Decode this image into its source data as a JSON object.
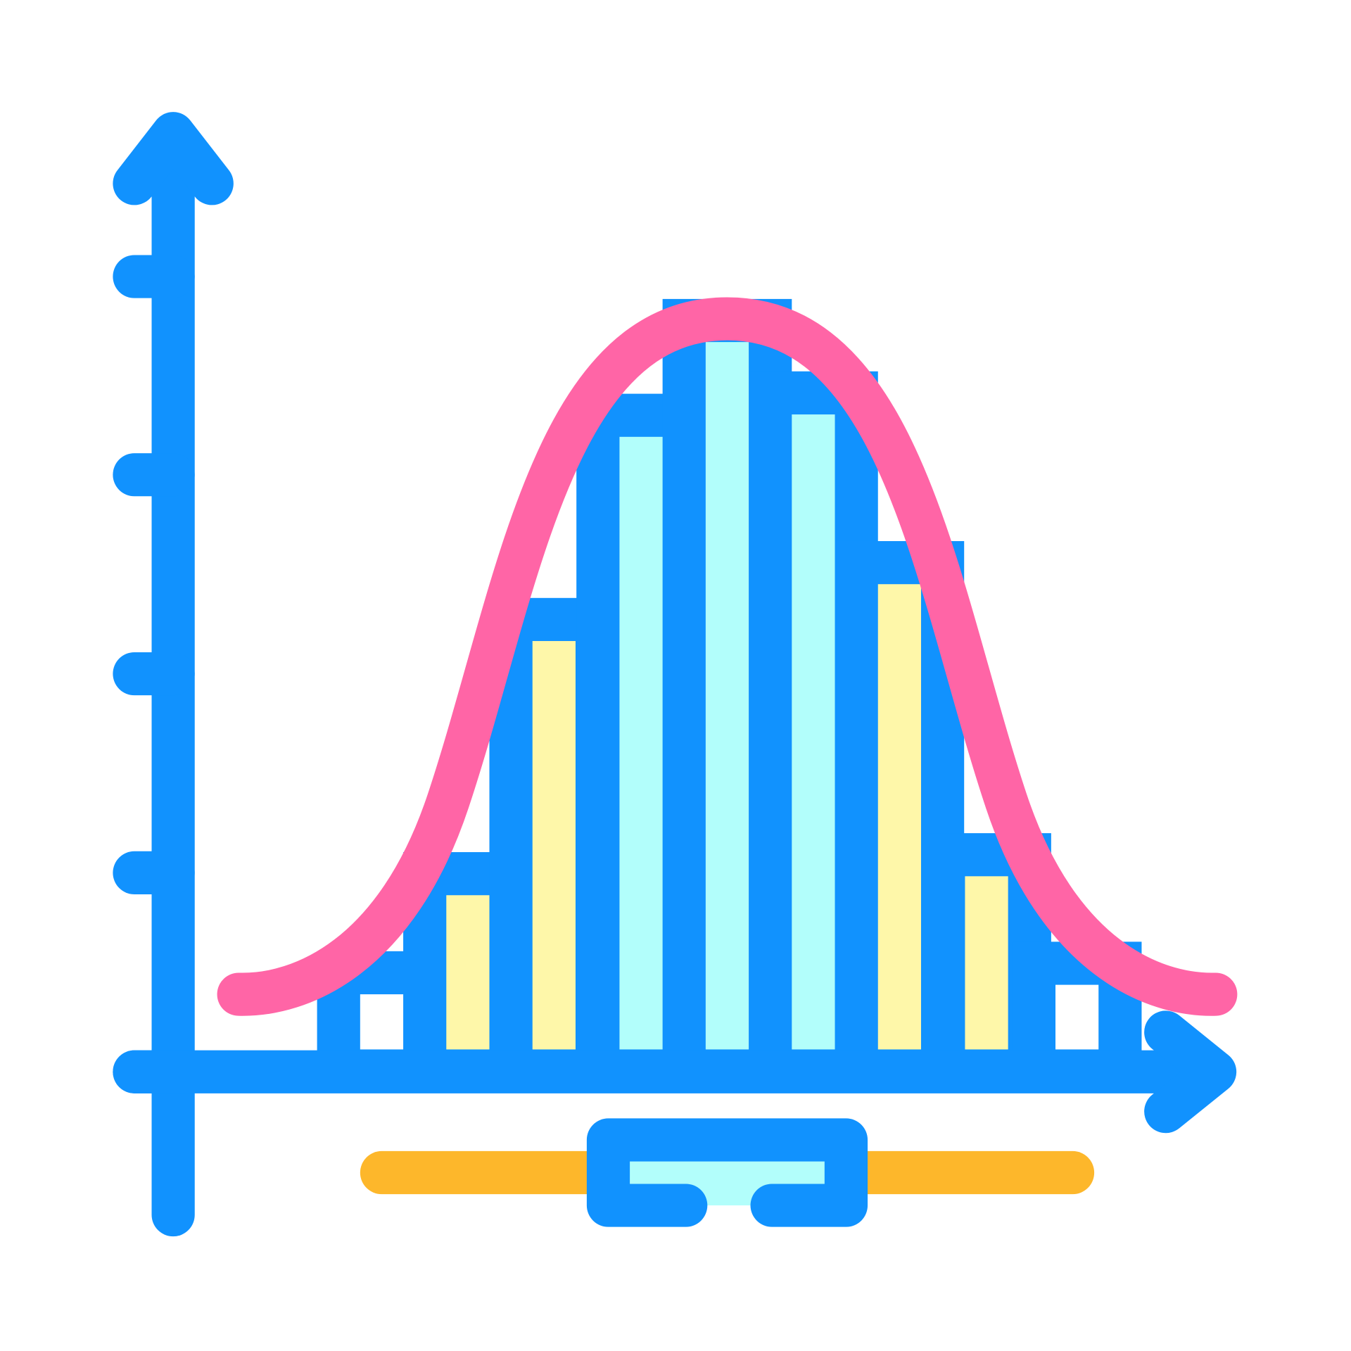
{
  "icon": {
    "name": "normal-distribution-histogram-icon",
    "colors": {
      "outline": "#1192FE",
      "curve": "#FF65A6",
      "bar_yellow": "#FEF7A9",
      "bar_cyan": "#B2FEFB",
      "range_line": "#FDB72B",
      "background": "#FFFFFF"
    },
    "bar_fills": [
      "white",
      "yellow",
      "yellow",
      "cyan",
      "cyan",
      "cyan",
      "yellow",
      "yellow",
      "white"
    ]
  }
}
